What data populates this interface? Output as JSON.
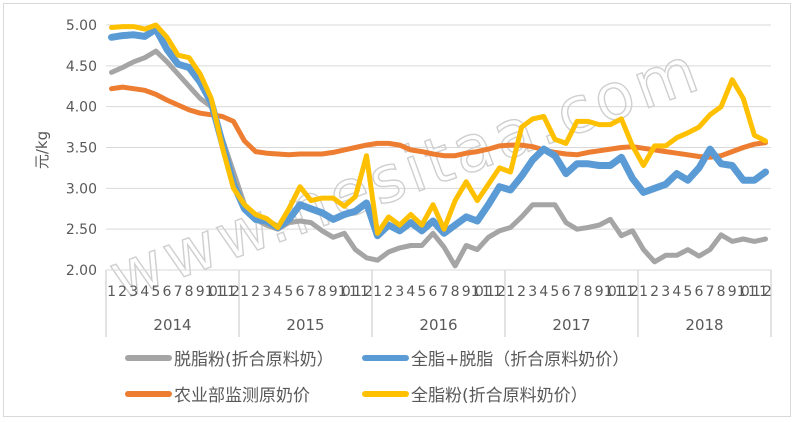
{
  "chart_data": {
    "type": "line",
    "title": "",
    "xlabel": "",
    "ylabel": "元/kg",
    "ylim": [
      2.0,
      5.0
    ],
    "yticks": [
      "5.00",
      "4.50",
      "4.00",
      "3.50",
      "3.00",
      "2.50",
      "2.00"
    ],
    "grid": true,
    "legend_position": "bottom",
    "years": [
      "2014",
      "2015",
      "2016",
      "2017",
      "2018"
    ],
    "month_labels": [
      "1",
      "2",
      "3",
      "4",
      "5",
      "6",
      "7",
      "8",
      "9",
      "10",
      "11",
      "12"
    ],
    "categories": [
      "2014-1",
      "2014-2",
      "2014-3",
      "2014-4",
      "2014-5",
      "2014-6",
      "2014-7",
      "2014-8",
      "2014-9",
      "2014-10",
      "2014-11",
      "2014-12",
      "2015-1",
      "2015-2",
      "2015-3",
      "2015-4",
      "2015-5",
      "2015-6",
      "2015-7",
      "2015-8",
      "2015-9",
      "2015-10",
      "2015-11",
      "2015-12",
      "2016-1",
      "2016-2",
      "2016-3",
      "2016-4",
      "2016-5",
      "2016-6",
      "2016-7",
      "2016-8",
      "2016-9",
      "2016-10",
      "2016-11",
      "2016-12",
      "2017-1",
      "2017-2",
      "2017-3",
      "2017-4",
      "2017-5",
      "2017-6",
      "2017-7",
      "2017-8",
      "2017-9",
      "2017-10",
      "2017-11",
      "2017-12",
      "2018-1",
      "2018-2",
      "2018-3",
      "2018-4",
      "2018-5",
      "2018-6",
      "2018-7",
      "2018-8",
      "2018-9",
      "2018-10",
      "2018-11",
      "2018-12"
    ],
    "series": [
      {
        "name": "农业部监测原奶价",
        "color": "#ED7D31",
        "values": [
          4.22,
          4.24,
          4.22,
          4.2,
          4.15,
          4.08,
          4.02,
          3.96,
          3.92,
          3.9,
          3.88,
          3.82,
          3.58,
          3.45,
          3.43,
          3.42,
          3.41,
          3.42,
          3.42,
          3.42,
          3.44,
          3.47,
          3.5,
          3.53,
          3.55,
          3.55,
          3.53,
          3.47,
          3.45,
          3.42,
          3.4,
          3.4,
          3.43,
          3.45,
          3.48,
          3.52,
          3.53,
          3.53,
          3.51,
          3.47,
          3.44,
          3.42,
          3.41,
          3.44,
          3.46,
          3.48,
          3.5,
          3.51,
          3.49,
          3.47,
          3.45,
          3.43,
          3.41,
          3.39,
          3.38,
          3.4,
          3.45,
          3.5,
          3.54,
          3.56
        ]
      },
      {
        "name": "脱脂粉(折合原料奶)",
        "color": "#A5A5A5",
        "values": [
          4.42,
          4.48,
          4.55,
          4.6,
          4.68,
          4.55,
          4.4,
          4.25,
          4.1,
          4.0,
          3.6,
          3.2,
          2.8,
          2.62,
          2.55,
          2.5,
          2.58,
          2.6,
          2.58,
          2.48,
          2.4,
          2.45,
          2.25,
          2.15,
          2.12,
          2.22,
          2.27,
          2.3,
          2.3,
          2.45,
          2.28,
          2.05,
          2.3,
          2.25,
          2.4,
          2.48,
          2.52,
          2.65,
          2.8,
          2.8,
          2.8,
          2.58,
          2.5,
          2.52,
          2.55,
          2.62,
          2.42,
          2.48,
          2.25,
          2.1,
          2.18,
          2.18,
          2.25,
          2.17,
          2.25,
          2.43,
          2.35,
          2.38,
          2.35,
          2.38
        ]
      },
      {
        "name": "全脂+脱脂（折合原料奶价）",
        "color": "#5B9BD5",
        "values": [
          4.85,
          4.87,
          4.88,
          4.86,
          4.95,
          4.7,
          4.52,
          4.48,
          4.3,
          4.05,
          3.55,
          3.05,
          2.75,
          2.62,
          2.6,
          2.52,
          2.62,
          2.8,
          2.75,
          2.7,
          2.62,
          2.68,
          2.72,
          2.82,
          2.42,
          2.55,
          2.48,
          2.58,
          2.48,
          2.6,
          2.45,
          2.55,
          2.65,
          2.6,
          2.8,
          3.02,
          2.98,
          3.15,
          3.35,
          3.48,
          3.4,
          3.18,
          3.3,
          3.3,
          3.28,
          3.28,
          3.38,
          3.12,
          2.95,
          3.0,
          3.05,
          3.18,
          3.1,
          3.25,
          3.48,
          3.3,
          3.28,
          3.1,
          3.1,
          3.2
        ]
      },
      {
        "name": "全脂粉(折合原料奶价）",
        "color": "#FFC000",
        "values": [
          4.97,
          4.98,
          4.98,
          4.95,
          5.0,
          4.85,
          4.63,
          4.6,
          4.4,
          4.1,
          3.5,
          3.0,
          2.8,
          2.68,
          2.63,
          2.52,
          2.75,
          3.02,
          2.85,
          2.88,
          2.88,
          2.78,
          2.9,
          3.4,
          2.45,
          2.65,
          2.55,
          2.68,
          2.55,
          2.8,
          2.5,
          2.85,
          3.08,
          2.85,
          3.05,
          3.25,
          3.2,
          3.75,
          3.85,
          3.88,
          3.6,
          3.55,
          3.82,
          3.82,
          3.78,
          3.78,
          3.85,
          3.52,
          3.28,
          3.52,
          3.52,
          3.62,
          3.68,
          3.75,
          3.9,
          4.0,
          4.33,
          4.1,
          3.65,
          3.58
        ]
      }
    ]
  },
  "legend": {
    "items": [
      {
        "label": "脱脂粉(折合原料奶）",
        "color": "#A5A5A5"
      },
      {
        "label": "全脂+脱脂（折合原料奶价）",
        "color": "#5B9BD5"
      },
      {
        "label": "农业部监测原奶价",
        "color": "#ED7D31"
      },
      {
        "label": "全脂粉(折合原料奶价）",
        "color": "#FFC000"
      }
    ]
  },
  "watermark": "www.nesitaa.com"
}
